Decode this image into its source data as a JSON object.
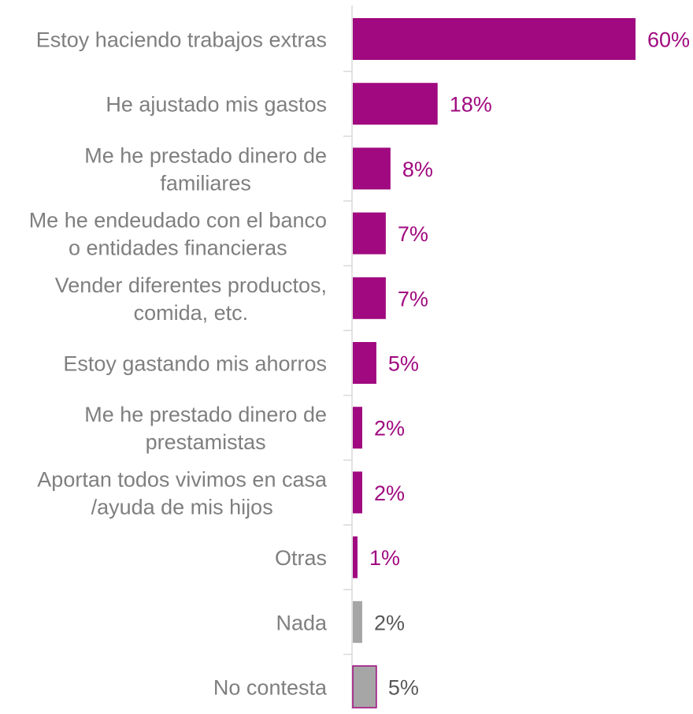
{
  "chart_data": {
    "type": "bar",
    "orientation": "horizontal",
    "categories": [
      [
        "Estoy haciendo trabajos extras"
      ],
      [
        "He ajustado mis gastos"
      ],
      [
        "Me he prestado dinero de",
        "familiares"
      ],
      [
        "Me he endeudado con el banco",
        "o entidades financieras"
      ],
      [
        "Vender diferentes productos,",
        "comida, etc."
      ],
      [
        "Estoy gastando mis ahorros"
      ],
      [
        "Me he prestado dinero de",
        "prestamistas"
      ],
      [
        "Aportan todos vivimos en casa",
        "/ayuda de mis hijos"
      ],
      [
        "Otras"
      ],
      [
        "Nada"
      ],
      [
        "No contesta"
      ]
    ],
    "values": [
      60,
      18,
      8,
      7,
      7,
      5,
      2,
      2,
      1,
      2,
      5
    ],
    "value_labels": [
      "60%",
      "18%",
      "8%",
      "7%",
      "7%",
      "5%",
      "2%",
      "2%",
      "1%",
      "2%",
      "5%"
    ],
    "unit": "%",
    "xlim": [
      0,
      62
    ],
    "grid": false,
    "colors": {
      "primary": "#A0097F",
      "secondary": "#A6A6A6",
      "secondary_outline": "#A0097F",
      "axis": "#D9D9D9",
      "category_text": "#7F7F7F",
      "secondary_value_text": "#595959"
    },
    "bar_color_group": [
      "primary",
      "primary",
      "primary",
      "primary",
      "primary",
      "primary",
      "primary",
      "primary",
      "primary",
      "secondary",
      "secondary"
    ],
    "outlined_bars": [
      10
    ]
  }
}
